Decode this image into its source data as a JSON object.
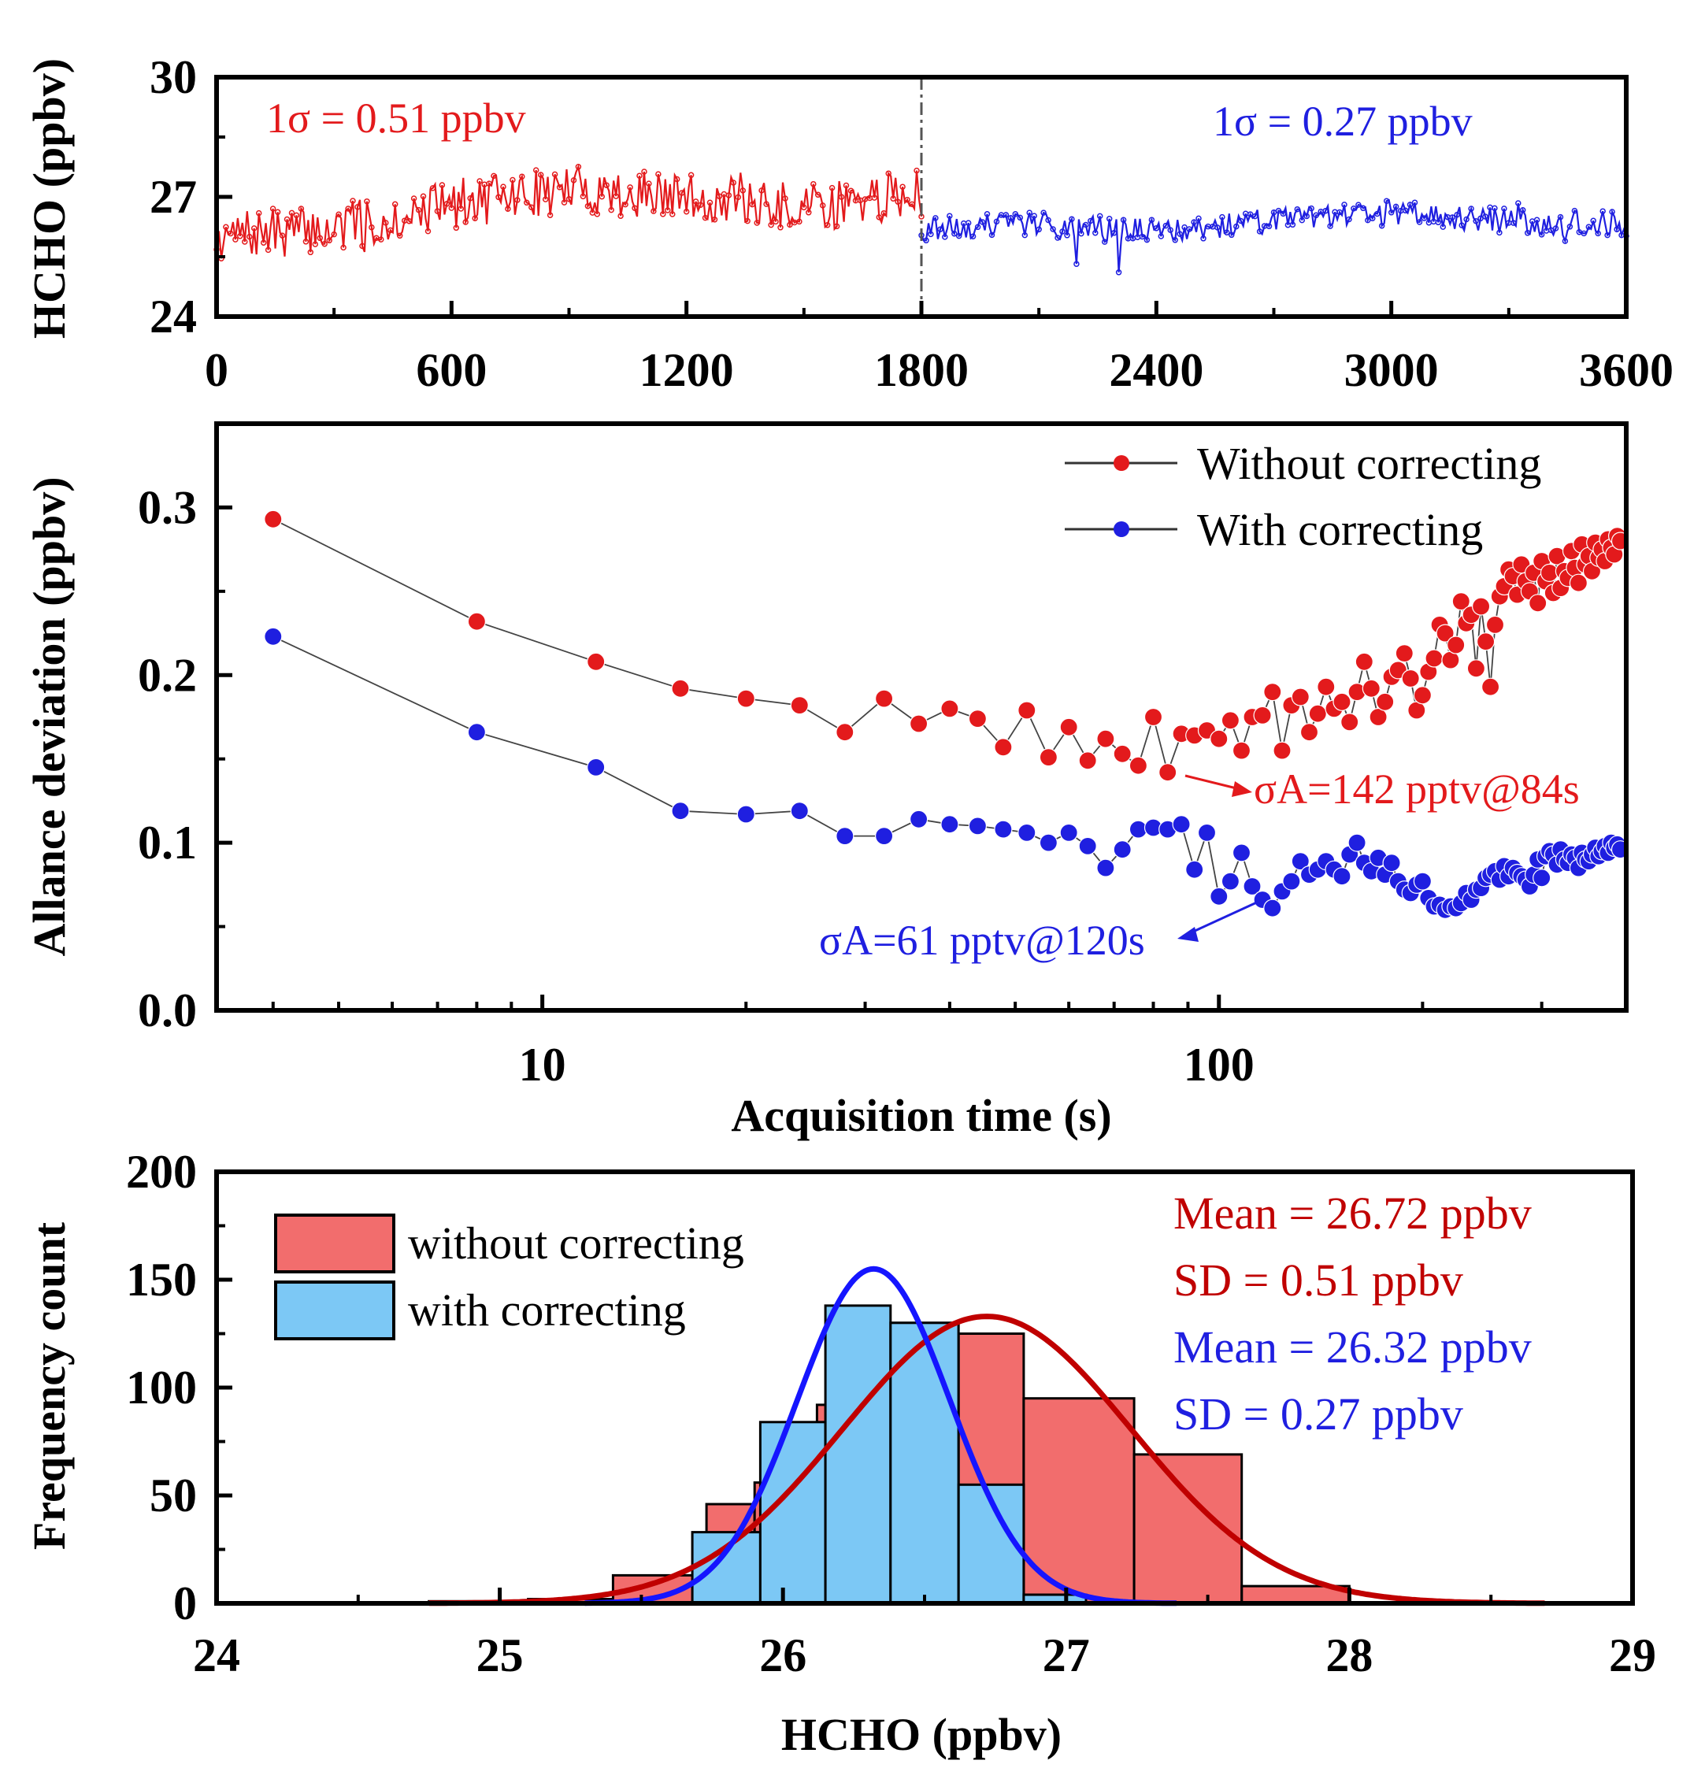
{
  "colors": {
    "red": "#e31a1c",
    "blue": "#1f1fe0",
    "hist_red": "#f26d6d",
    "hist_blue": "#7cc8f5",
    "curve_red": "#c00000",
    "curve_blue": "#1515ff"
  },
  "chart_data": [
    {
      "id": "timeseries",
      "type": "line",
      "ylabel": "HCHO (ppbv)",
      "xlabel": "",
      "xlim": [
        0,
        3600
      ],
      "ylim": [
        24,
        30
      ],
      "xticks": [
        "0",
        "600",
        "1200",
        "1800",
        "2400",
        "3000",
        "3600"
      ],
      "yticks": [
        "24",
        "27",
        "30"
      ],
      "divider_x": 1800,
      "series": [
        {
          "name": "without correcting",
          "x_range": [
            0,
            1800
          ],
          "mean": 26.72,
          "sd": 0.51,
          "trend_x": [
            0,
            300,
            600,
            900,
            1200,
            1500,
            1800
          ],
          "trend_y": [
            26.0,
            26.2,
            26.8,
            27.2,
            27.0,
            26.7,
            27.1
          ]
        },
        {
          "name": "with correcting",
          "x_range": [
            1800,
            3600
          ],
          "mean": 26.32,
          "sd": 0.27,
          "trend_x": [
            1800,
            2100,
            2400,
            2700,
            3000,
            3300,
            3600
          ],
          "trend_y": [
            26.2,
            26.3,
            26.1,
            26.4,
            26.6,
            26.4,
            26.3
          ]
        }
      ],
      "annotations": [
        {
          "text": "1σ = 0.51 ppbv",
          "color": "red"
        },
        {
          "text": "1σ = 0.27 ppbv",
          "color": "blue"
        }
      ]
    },
    {
      "id": "allan",
      "type": "scatter",
      "xscale": "log",
      "xlabel": "Acquisition time (s)",
      "ylabel": "Allance deviation (ppbv)",
      "xlim": [
        3.3,
        400
      ],
      "ylim": [
        0.0,
        0.35
      ],
      "xticks": [
        "10",
        "100"
      ],
      "yticks": [
        "0.0",
        "0.1",
        "0.2",
        "0.3"
      ],
      "legend": {
        "position": "top-right",
        "entries": [
          "Without correcting",
          "With correcting"
        ]
      },
      "series": [
        {
          "name": "Without correcting",
          "x": [
            4,
            8,
            12,
            16,
            20,
            24,
            28,
            32,
            36,
            40,
            44,
            48,
            52,
            56,
            60,
            64,
            68,
            72,
            76,
            80,
            84,
            88,
            92,
            96,
            100,
            104,
            108,
            112,
            116,
            120,
            124,
            128,
            132,
            136,
            140,
            144,
            148,
            152,
            156,
            160,
            164,
            168,
            172,
            176,
            180,
            184,
            188,
            192,
            196,
            200,
            204,
            208,
            212,
            216,
            220,
            224,
            228,
            232,
            236,
            240,
            244,
            248,
            252,
            256,
            260,
            264,
            268,
            272,
            276,
            280,
            284,
            288,
            292,
            296,
            300,
            304,
            308,
            312,
            316,
            320,
            324,
            328,
            332,
            336,
            340,
            344,
            348,
            352,
            356,
            360,
            364,
            368,
            372,
            376,
            380,
            384,
            388,
            392
          ],
          "y": [
            0.293,
            0.232,
            0.208,
            0.192,
            0.186,
            0.182,
            0.166,
            0.186,
            0.171,
            0.18,
            0.174,
            0.157,
            0.179,
            0.151,
            0.169,
            0.149,
            0.162,
            0.153,
            0.146,
            0.175,
            0.142,
            0.165,
            0.164,
            0.167,
            0.162,
            0.173,
            0.155,
            0.175,
            0.176,
            0.19,
            0.155,
            0.182,
            0.187,
            0.166,
            0.177,
            0.193,
            0.18,
            0.184,
            0.172,
            0.19,
            0.208,
            0.192,
            0.175,
            0.184,
            0.199,
            0.203,
            0.213,
            0.198,
            0.179,
            0.188,
            0.202,
            0.21,
            0.23,
            0.225,
            0.209,
            0.218,
            0.244,
            0.231,
            0.236,
            0.204,
            0.241,
            0.22,
            0.193,
            0.23,
            0.247,
            0.253,
            0.263,
            0.259,
            0.248,
            0.266,
            0.256,
            0.25,
            0.261,
            0.243,
            0.268,
            0.256,
            0.261,
            0.249,
            0.271,
            0.252,
            0.262,
            0.258,
            0.274,
            0.264,
            0.255,
            0.278,
            0.266,
            0.271,
            0.262,
            0.279,
            0.27,
            0.275,
            0.268,
            0.281,
            0.276,
            0.272,
            0.283,
            0.28
          ],
          "annotation": {
            "text": "σA=142 pptv@84s",
            "x": 84,
            "y": 0.142
          }
        },
        {
          "name": "With correcting",
          "x": [
            4,
            8,
            12,
            16,
            20,
            24,
            28,
            32,
            36,
            40,
            44,
            48,
            52,
            56,
            60,
            64,
            68,
            72,
            76,
            80,
            84,
            88,
            92,
            96,
            100,
            104,
            108,
            112,
            116,
            120,
            124,
            128,
            132,
            136,
            140,
            144,
            148,
            152,
            156,
            160,
            164,
            168,
            172,
            176,
            180,
            184,
            188,
            192,
            196,
            200,
            204,
            208,
            212,
            216,
            220,
            224,
            228,
            232,
            236,
            240,
            244,
            248,
            252,
            256,
            260,
            264,
            268,
            272,
            276,
            280,
            284,
            288,
            292,
            296,
            300,
            304,
            308,
            312,
            316,
            320,
            324,
            328,
            332,
            336,
            340,
            344,
            348,
            352,
            356,
            360,
            364,
            368,
            372,
            376,
            380,
            384,
            388,
            392
          ],
          "y": [
            0.223,
            0.166,
            0.145,
            0.119,
            0.117,
            0.119,
            0.104,
            0.104,
            0.114,
            0.111,
            0.11,
            0.108,
            0.106,
            0.1,
            0.106,
            0.098,
            0.085,
            0.096,
            0.108,
            0.109,
            0.108,
            0.111,
            0.084,
            0.106,
            0.068,
            0.077,
            0.094,
            0.074,
            0.066,
            0.061,
            0.071,
            0.077,
            0.089,
            0.081,
            0.084,
            0.089,
            0.084,
            0.08,
            0.093,
            0.1,
            0.088,
            0.083,
            0.091,
            0.081,
            0.088,
            0.077,
            0.072,
            0.07,
            0.075,
            0.077,
            0.067,
            0.062,
            0.063,
            0.06,
            0.062,
            0.061,
            0.064,
            0.07,
            0.066,
            0.072,
            0.073,
            0.079,
            0.081,
            0.083,
            0.078,
            0.086,
            0.08,
            0.085,
            0.082,
            0.08,
            0.078,
            0.074,
            0.081,
            0.09,
            0.079,
            0.092,
            0.095,
            0.093,
            0.087,
            0.096,
            0.09,
            0.088,
            0.093,
            0.091,
            0.085,
            0.094,
            0.09,
            0.089,
            0.093,
            0.097,
            0.092,
            0.095,
            0.098,
            0.094,
            0.1,
            0.097,
            0.099,
            0.096
          ],
          "annotation": {
            "text": "σA=61 pptv@120s",
            "x": 120,
            "y": 0.061
          }
        }
      ]
    },
    {
      "id": "histogram",
      "type": "bar",
      "xlabel": "HCHO (ppbv)",
      "ylabel": "Frequency count",
      "xlim": [
        24,
        29
      ],
      "ylim": [
        0,
        200
      ],
      "xticks": [
        "24",
        "25",
        "26",
        "27",
        "28",
        "29"
      ],
      "yticks": [
        "0",
        "50",
        "100",
        "150",
        "200"
      ],
      "legend": {
        "position": "top-left",
        "entries": [
          "without correcting",
          "with correcting"
        ]
      },
      "series": [
        {
          "name": "without correcting",
          "bin_edges": [
            24.75,
            25.1,
            25.4,
            25.73,
            25.9,
            26.12,
            26.38,
            26.62,
            26.85,
            27.24,
            27.62,
            28.0
          ],
          "counts": [
            1,
            2,
            13,
            46,
            56,
            92,
            130,
            125,
            95,
            69,
            8
          ],
          "fit": {
            "mean": 26.72,
            "sd": 0.51,
            "peak": 133
          }
        },
        {
          "name": "with correcting",
          "bin_edges": [
            25.68,
            25.92,
            26.15,
            26.38,
            26.62,
            26.85,
            27.07
          ],
          "counts": [
            33,
            84,
            138,
            130,
            55,
            4
          ],
          "fit": {
            "mean": 26.32,
            "sd": 0.27,
            "peak": 155
          }
        }
      ],
      "stats": {
        "red_mean": "Mean = 26.72 ppbv",
        "red_sd": "SD = 0.51 ppbv",
        "blue_mean": "Mean = 26.32 ppbv",
        "blue_sd": "SD = 0.27 ppbv"
      }
    }
  ]
}
